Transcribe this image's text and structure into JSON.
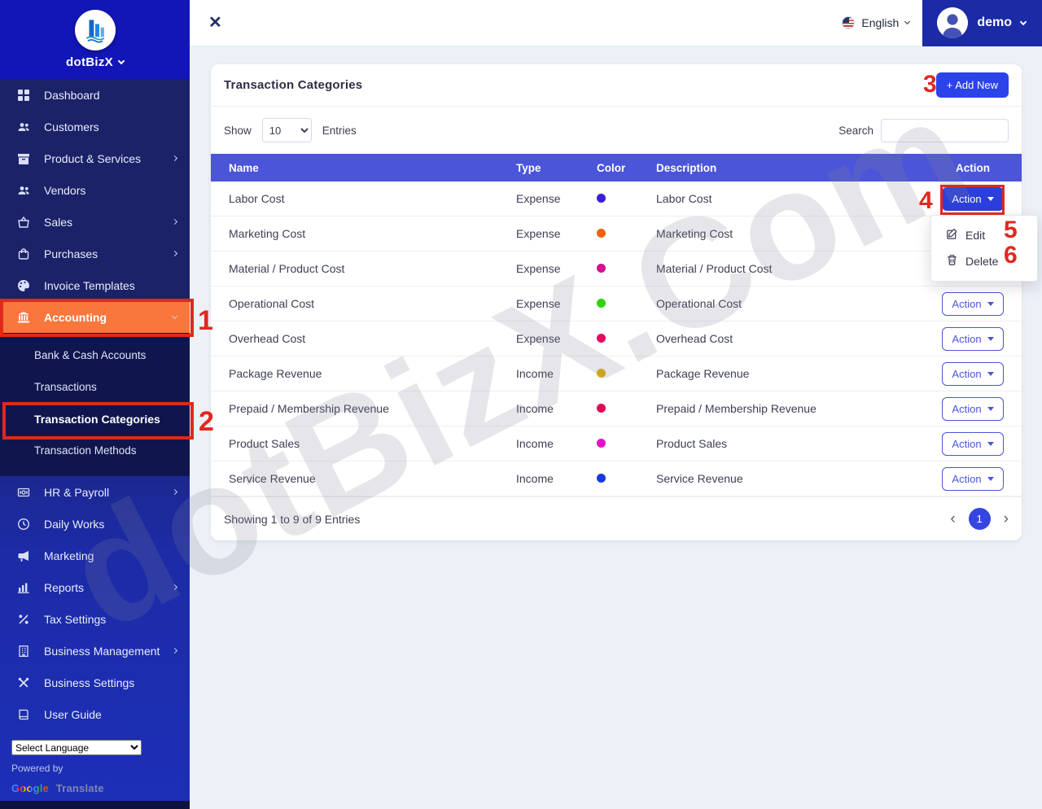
{
  "topbar": {
    "close_icon": "✕",
    "language_label": "English",
    "user_name": "demo"
  },
  "sidebar": {
    "brand": "dotBizX",
    "upper_items": [
      {
        "label": "Dashboard",
        "icon": "grid",
        "chevron": false
      },
      {
        "label": "Customers",
        "icon": "users",
        "chevron": false
      },
      {
        "label": "Product & Services",
        "icon": "box",
        "chevron": true
      },
      {
        "label": "Vendors",
        "icon": "users",
        "chevron": false
      },
      {
        "label": "Sales",
        "icon": "basket",
        "chevron": true
      },
      {
        "label": "Purchases",
        "icon": "bag",
        "chevron": true
      },
      {
        "label": "Invoice Templates",
        "icon": "palette",
        "chevron": false
      }
    ],
    "accounting": {
      "label": "Accounting",
      "icon": "bank"
    },
    "submenu": [
      {
        "label": "Bank & Cash Accounts",
        "active": false
      },
      {
        "label": "Transactions",
        "active": false
      },
      {
        "label": "Transaction Categories",
        "active": true
      },
      {
        "label": "Transaction Methods",
        "active": false
      }
    ],
    "lower_items": [
      {
        "label": "HR & Payroll",
        "icon": "payroll",
        "chevron": true
      },
      {
        "label": "Daily Works",
        "icon": "clock",
        "chevron": false
      },
      {
        "label": "Marketing",
        "icon": "megaphone",
        "chevron": false
      },
      {
        "label": "Reports",
        "icon": "chart",
        "chevron": true
      },
      {
        "label": "Tax Settings",
        "icon": "percent",
        "chevron": false
      },
      {
        "label": "Business Management",
        "icon": "building",
        "chevron": true
      },
      {
        "label": "Business Settings",
        "icon": "tools",
        "chevron": false
      },
      {
        "label": "User Guide",
        "icon": "book",
        "chevron": false
      }
    ],
    "language_select": "Select Language",
    "powered_by": "Powered by",
    "google": "Google",
    "translate": "Translate"
  },
  "page": {
    "title": "Transaction Categories",
    "add_new_label": "+ Add New",
    "show_label": "Show",
    "page_size": "10",
    "entries_label": "Entries",
    "search_label": "Search",
    "search_value": ""
  },
  "table": {
    "headers": [
      "Name",
      "Type",
      "Color",
      "Description",
      "Action"
    ],
    "action_button_label": "Action",
    "rows": [
      {
        "name": "Labor Cost",
        "type": "Expense",
        "color": "#3a1ed6",
        "description": "Labor Cost"
      },
      {
        "name": "Marketing Cost",
        "type": "Expense",
        "color": "#f16112",
        "description": "Marketing Cost"
      },
      {
        "name": "Material / Product Cost",
        "type": "Expense",
        "color": "#d1148e",
        "description": "Material / Product Cost"
      },
      {
        "name": "Operational Cost",
        "type": "Expense",
        "color": "#2ed40c",
        "description": "Operational Cost"
      },
      {
        "name": "Overhead Cost",
        "type": "Expense",
        "color": "#e00d60",
        "description": "Overhead Cost"
      },
      {
        "name": "Package Revenue",
        "type": "Income",
        "color": "#ddad0b",
        "description": "Package Revenue"
      },
      {
        "name": "Prepaid / Membership Revenue",
        "type": "Income",
        "color": "#e00b50",
        "description": "Prepaid / Membership Revenue"
      },
      {
        "name": "Product Sales",
        "type": "Income",
        "color": "#e414c6",
        "description": "Product Sales"
      },
      {
        "name": "Service Revenue",
        "type": "Income",
        "color": "#1a38dc",
        "description": "Service Revenue"
      }
    ],
    "menu": {
      "edit_label": "Edit",
      "delete_label": "Delete"
    }
  },
  "footer": {
    "summary": "Showing 1 to 9 of 9 Entries",
    "prev_icon": "‹",
    "current_page": "1",
    "next_icon": "›"
  },
  "annotations": [
    "1",
    "2",
    "3",
    "4",
    "5",
    "6"
  ],
  "watermark": "dotBizX.Com",
  "colors": {
    "accent_blue": "#2b43e8",
    "table_header_blue": "#4b55d9",
    "sidebar_active_orange": "#f9773c",
    "annotation_red": "#e1281f",
    "user_chip_blue": "#1b2aa5"
  }
}
